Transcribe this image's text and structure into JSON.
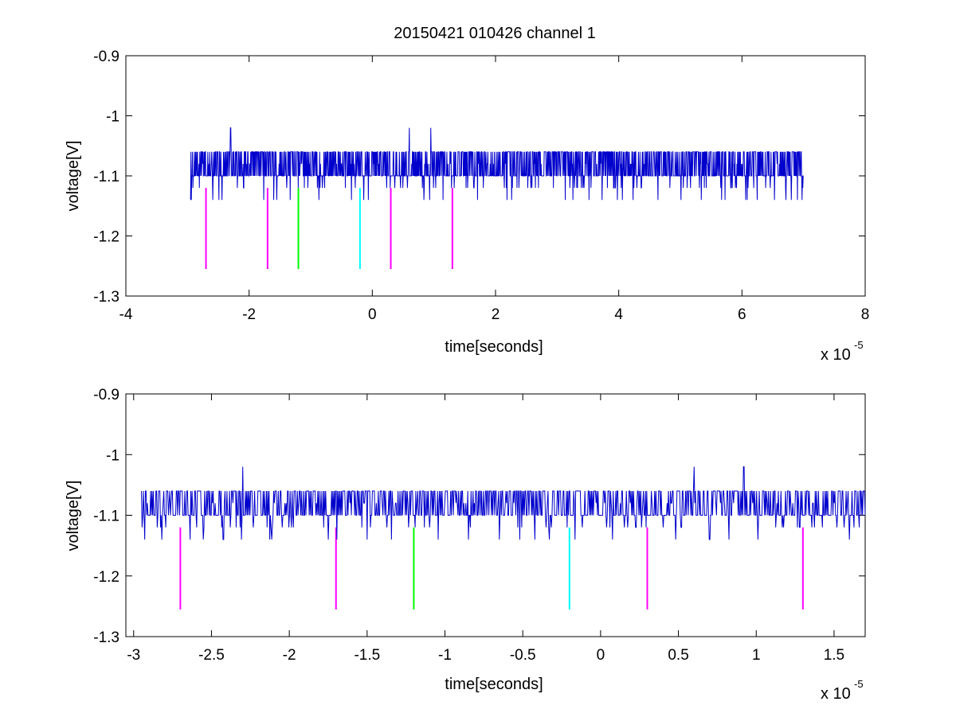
{
  "chart_data": [
    {
      "type": "line",
      "title": "20150421 010426 channel 1",
      "xlabel": "time[seconds]",
      "ylabel": "voltage[V]",
      "x_exponent_base": "x 10",
      "x_exponent_power": "-5",
      "xlim": [
        -4,
        8
      ],
      "ylim": [
        -1.3,
        -0.9
      ],
      "xticks": [
        -4,
        -2,
        0,
        2,
        4,
        6,
        8
      ],
      "xtick_labels": [
        "-4",
        "-2",
        "0",
        "2",
        "4",
        "6",
        "8"
      ],
      "yticks": [
        -1.3,
        -1.2,
        -1.1,
        -1.0,
        -0.9
      ],
      "ytick_labels": [
        "-1.3",
        "-1.2",
        "-1.1",
        "-1",
        "-0.9"
      ],
      "grid": false,
      "signal": {
        "color": "#0000cc",
        "x_range": [
          -2.95,
          7.0
        ],
        "baseline": -1.1,
        "levels": [
          -1.14,
          -1.12,
          -1.1,
          -1.08,
          -1.06,
          -1.04,
          -1.02
        ],
        "peaks": [
          {
            "x": -2.3,
            "y": -1.02
          },
          {
            "x": 0.6,
            "y": -1.02
          },
          {
            "x": 0.95,
            "y": -1.02
          }
        ],
        "troughs": [
          {
            "x": -2.95,
            "y": -1.14
          },
          {
            "x": 6.8,
            "y": -1.14
          }
        ]
      },
      "markers": [
        {
          "x": -2.7,
          "y_top": -1.12,
          "y_bottom": -1.255,
          "color": "#ff00ff"
        },
        {
          "x": -1.7,
          "y_top": -1.12,
          "y_bottom": -1.255,
          "color": "#ff00ff"
        },
        {
          "x": -1.2,
          "y_top": -1.12,
          "y_bottom": -1.255,
          "color": "#00ff00"
        },
        {
          "x": -0.2,
          "y_top": -1.12,
          "y_bottom": -1.255,
          "color": "#00ffff"
        },
        {
          "x": 0.3,
          "y_top": -1.12,
          "y_bottom": -1.255,
          "color": "#ff00ff"
        },
        {
          "x": 1.3,
          "y_top": -1.12,
          "y_bottom": -1.255,
          "color": "#ff00ff"
        }
      ]
    },
    {
      "type": "line",
      "title": "",
      "xlabel": "time[seconds]",
      "ylabel": "voltage[V]",
      "x_exponent_base": "x 10",
      "x_exponent_power": "-5",
      "xlim": [
        -3.05,
        1.7
      ],
      "ylim": [
        -1.3,
        -0.9
      ],
      "xticks": [
        -3,
        -2.5,
        -2,
        -1.5,
        -1,
        -0.5,
        0,
        0.5,
        1,
        1.5
      ],
      "xtick_labels": [
        "-3",
        "-2.5",
        "-2",
        "-1.5",
        "-1",
        "-0.5",
        "0",
        "0.5",
        "1",
        "1.5"
      ],
      "yticks": [
        -1.3,
        -1.2,
        -1.1,
        -1.0,
        -0.9
      ],
      "ytick_labels": [
        "-1.3",
        "-1.2",
        "-1.1",
        "-1",
        "-0.9"
      ],
      "grid": false,
      "signal": {
        "color": "#0000cc",
        "x_range": [
          -2.95,
          1.7
        ],
        "baseline": -1.1,
        "levels": [
          -1.14,
          -1.12,
          -1.1,
          -1.08,
          -1.06,
          -1.04,
          -1.02
        ],
        "peaks": [
          {
            "x": -2.3,
            "y": -1.02
          },
          {
            "x": 0.6,
            "y": -1.02
          },
          {
            "x": 0.92,
            "y": -1.02
          }
        ],
        "troughs": [
          {
            "x": -2.93,
            "y": -1.14
          },
          {
            "x": -1.75,
            "y": -1.14
          },
          {
            "x": -0.65,
            "y": -1.14
          },
          {
            "x": 0.7,
            "y": -1.14
          },
          {
            "x": 1.6,
            "y": -1.14
          }
        ]
      },
      "markers": [
        {
          "x": -2.7,
          "y_top": -1.12,
          "y_bottom": -1.255,
          "color": "#ff00ff"
        },
        {
          "x": -1.7,
          "y_top": -1.12,
          "y_bottom": -1.255,
          "color": "#ff00ff"
        },
        {
          "x": -1.2,
          "y_top": -1.12,
          "y_bottom": -1.255,
          "color": "#00ff00"
        },
        {
          "x": -0.2,
          "y_top": -1.12,
          "y_bottom": -1.255,
          "color": "#00ffff"
        },
        {
          "x": 0.3,
          "y_top": -1.12,
          "y_bottom": -1.255,
          "color": "#ff00ff"
        },
        {
          "x": 1.3,
          "y_top": -1.12,
          "y_bottom": -1.255,
          "color": "#ff00ff"
        }
      ]
    }
  ]
}
